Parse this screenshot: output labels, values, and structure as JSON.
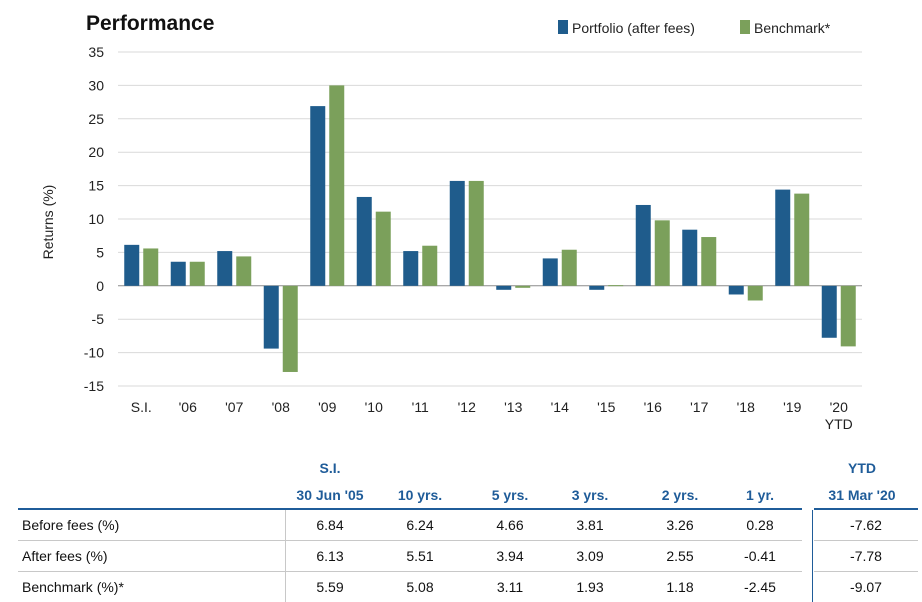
{
  "chart_data": {
    "type": "bar",
    "title": "Performance",
    "ylabel": "Returns (%)",
    "xlabel": "",
    "ylim": [
      -15,
      35
    ],
    "yticks": [
      35,
      30,
      25,
      20,
      15,
      10,
      5,
      0,
      -5,
      -10,
      -15
    ],
    "categories": [
      "S.I.",
      "'06",
      "'07",
      "'08",
      "'09",
      "'10",
      "'11",
      "'12",
      "'13",
      "'14",
      "'15",
      "'16",
      "'17",
      "'18",
      "'19",
      "'20\nYTD"
    ],
    "series": [
      {
        "name": "Portfolio (after fees)",
        "color": "#1f5c8c",
        "values": [
          6.13,
          3.6,
          5.2,
          -9.4,
          26.9,
          13.3,
          5.2,
          15.7,
          -0.6,
          4.1,
          -0.6,
          12.1,
          8.4,
          -1.3,
          14.4,
          -7.78
        ]
      },
      {
        "name": "Benchmark*",
        "color": "#7ba05b",
        "values": [
          5.59,
          3.6,
          4.4,
          -12.9,
          30.0,
          11.1,
          6.0,
          15.7,
          -0.3,
          5.4,
          0.1,
          9.8,
          7.3,
          -2.2,
          13.8,
          -9.07
        ]
      }
    ],
    "grid": true,
    "legend": "top-right"
  },
  "table": {
    "col_headers": [
      {
        "top": "S.I.",
        "bottom": "30 Jun '05"
      },
      {
        "top": "",
        "bottom": "10 yrs."
      },
      {
        "top": "",
        "bottom": "5 yrs."
      },
      {
        "top": "",
        "bottom": "3 yrs."
      },
      {
        "top": "",
        "bottom": "2 yrs."
      },
      {
        "top": "",
        "bottom": "1 yr."
      },
      {
        "top": "YTD",
        "bottom": "31 Mar '20"
      }
    ],
    "rows": [
      {
        "label": "Before fees (%)",
        "values": [
          "6.84",
          "6.24",
          "4.66",
          "3.81",
          "3.26",
          "0.28",
          "-7.62"
        ]
      },
      {
        "label": "After fees (%)",
        "values": [
          "6.13",
          "5.51",
          "3.94",
          "3.09",
          "2.55",
          "-0.41",
          "-7.78"
        ]
      },
      {
        "label": "Benchmark (%)*",
        "values": [
          "5.59",
          "5.08",
          "3.11",
          "1.93",
          "1.18",
          "-2.45",
          "-9.07"
        ]
      }
    ]
  }
}
